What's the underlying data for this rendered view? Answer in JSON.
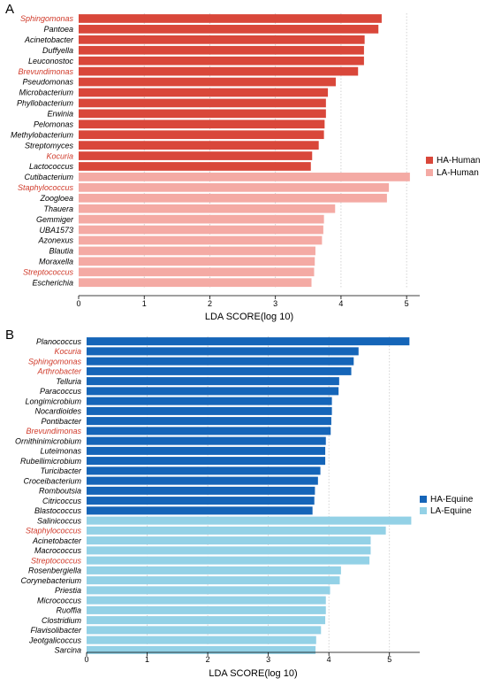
{
  "chart_data": [
    {
      "type": "bar",
      "orientation": "horizontal",
      "panel_label": "A",
      "xlabel": "LDA SCORE(log 10)",
      "xlim": [
        0,
        5.2
      ],
      "xticks": [
        "0",
        "1",
        "2",
        "3",
        "4",
        "5"
      ],
      "grid": "vertical dotted",
      "legend_position": "right",
      "highlight_color": "#d03a2a",
      "label_color": "#000000",
      "series": [
        {
          "name": "HA-Human",
          "color": "#d9473a",
          "categories": [
            "Sphingomonas",
            "Pantoea",
            "Acinetobacter",
            "Duffyella",
            "Leuconostoc",
            "Brevundimonas",
            "Pseudomonas",
            "Microbacterium",
            "Phyllobacterium",
            "Erwinia",
            "Pelomonas",
            "Methylobacterium",
            "Streptomyces",
            "Kocuria",
            "Lactococcus"
          ],
          "values": [
            4.62,
            4.57,
            4.36,
            4.35,
            4.35,
            4.26,
            3.92,
            3.8,
            3.77,
            3.77,
            3.75,
            3.74,
            3.66,
            3.56,
            3.54
          ],
          "highlighted": [
            true,
            false,
            false,
            false,
            false,
            true,
            false,
            false,
            false,
            false,
            false,
            false,
            false,
            true,
            false
          ]
        },
        {
          "name": "LA-Human",
          "color": "#f4aaa4",
          "categories": [
            "Cutibacterium",
            "Staphylococcus",
            "Zoogloea",
            "Thauera",
            "Gemmiger",
            "UBA1573",
            "Azonexus",
            "Blautia",
            "Moraxella",
            "Streptococcus",
            "Escherichia"
          ],
          "values": [
            5.05,
            4.73,
            4.7,
            3.91,
            3.74,
            3.73,
            3.71,
            3.61,
            3.6,
            3.59,
            3.55
          ],
          "highlighted": [
            false,
            true,
            false,
            false,
            false,
            false,
            false,
            false,
            false,
            true,
            false
          ]
        }
      ]
    },
    {
      "type": "bar",
      "orientation": "horizontal",
      "panel_label": "B",
      "xlabel": "LDA SCORE(log 10)",
      "xlim": [
        0,
        5.5
      ],
      "xticks": [
        "0",
        "1",
        "2",
        "3",
        "4",
        "5"
      ],
      "grid": "vertical dotted",
      "legend_position": "right",
      "highlight_color": "#d03a2a",
      "label_color": "#000000",
      "series": [
        {
          "name": "HA-Equine",
          "color": "#1565b8",
          "categories": [
            "Planococcus",
            "Kocuria",
            "Sphingomonas",
            "Arthrobacter",
            "Telluria",
            "Paracoccus",
            "Longimicrobium",
            "Nocardioides",
            "Pontibacter",
            "Brevundimonas",
            "Ornithinimicrobium",
            "Luteimonas",
            "Rubellimicrobium",
            "Turicibacter",
            "Croceibacterium",
            "Romboutsia",
            "Citricoccus",
            "Blastococcus"
          ],
          "values": [
            5.33,
            4.49,
            4.41,
            4.37,
            4.17,
            4.16,
            4.05,
            4.05,
            4.04,
            4.03,
            3.95,
            3.94,
            3.94,
            3.86,
            3.82,
            3.77,
            3.76,
            3.73
          ],
          "highlighted": [
            false,
            true,
            true,
            true,
            false,
            false,
            false,
            false,
            false,
            true,
            false,
            false,
            false,
            false,
            false,
            false,
            false,
            false
          ]
        },
        {
          "name": "LA-Equine",
          "color": "#93d1e6",
          "categories": [
            "Salinicoccus",
            "Staphylococcus",
            "Acinetobacter",
            "Macrococcus",
            "Streptococcus",
            "Rosenbergiella",
            "Corynebacterium",
            "Priestia",
            "Micrococcus",
            "Ruoffia",
            "Clostridium",
            "Flavisolibacter",
            "Jeotgalicoccus",
            "Sarcina"
          ],
          "values": [
            5.36,
            4.94,
            4.69,
            4.69,
            4.67,
            4.2,
            4.18,
            4.02,
            3.95,
            3.95,
            3.94,
            3.87,
            3.79,
            3.78
          ],
          "highlighted": [
            false,
            true,
            false,
            false,
            true,
            false,
            false,
            false,
            false,
            false,
            false,
            false,
            false,
            false
          ]
        }
      ]
    }
  ]
}
